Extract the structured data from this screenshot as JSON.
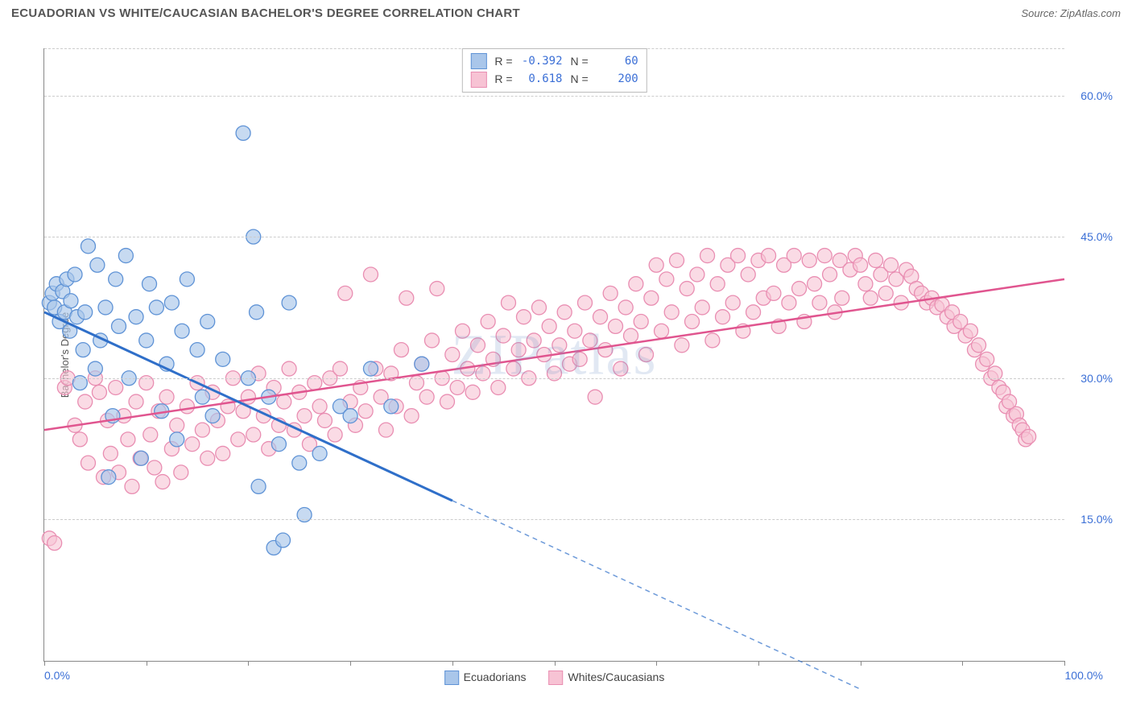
{
  "header": {
    "title": "ECUADORIAN VS WHITE/CAUCASIAN BACHELOR'S DEGREE CORRELATION CHART",
    "source_prefix": "Source: ",
    "source_name": "ZipAtlas.com"
  },
  "watermark": "ZIPatlas",
  "axes": {
    "y_title": "Bachelor's Degree",
    "x_min_label": "0.0%",
    "x_max_label": "100.0%",
    "xlim": [
      0,
      100
    ],
    "ylim": [
      0,
      65
    ],
    "x_ticks": [
      0,
      10,
      20,
      30,
      40,
      50,
      60,
      70,
      80,
      90,
      100
    ],
    "y_gridlines": [
      15,
      30,
      45,
      60,
      65
    ],
    "y_labels": [
      {
        "v": 15,
        "text": "15.0%"
      },
      {
        "v": 30,
        "text": "30.0%"
      },
      {
        "v": 45,
        "text": "45.0%"
      },
      {
        "v": 60,
        "text": "60.0%"
      }
    ]
  },
  "series": {
    "blue": {
      "name": "Ecuadorians",
      "fill": "#a9c6ea",
      "stroke": "#5f93d6",
      "line_color": "#2f6fc9",
      "marker_radius": 9,
      "marker_opacity": 0.65,
      "R": "-0.392",
      "N": "60",
      "trend": {
        "x1": 0,
        "y1": 37,
        "x_solid_end": 40,
        "y_solid_end": 17,
        "x2": 80,
        "y2": -3
      },
      "points": [
        [
          0.5,
          38
        ],
        [
          0.8,
          39
        ],
        [
          1,
          37.5
        ],
        [
          1.2,
          40
        ],
        [
          1.5,
          36
        ],
        [
          1.8,
          39.2
        ],
        [
          2,
          37
        ],
        [
          2.2,
          40.5
        ],
        [
          2.5,
          35
        ],
        [
          2.6,
          38.2
        ],
        [
          3,
          41
        ],
        [
          3.2,
          36.5
        ],
        [
          3.5,
          29.5
        ],
        [
          3.8,
          33
        ],
        [
          4,
          37
        ],
        [
          4.3,
          44
        ],
        [
          5,
          31
        ],
        [
          5.2,
          42
        ],
        [
          5.5,
          34
        ],
        [
          6,
          37.5
        ],
        [
          6.3,
          19.5
        ],
        [
          6.7,
          26
        ],
        [
          7,
          40.5
        ],
        [
          7.3,
          35.5
        ],
        [
          8,
          43
        ],
        [
          8.3,
          30
        ],
        [
          9,
          36.5
        ],
        [
          9.5,
          21.5
        ],
        [
          10,
          34
        ],
        [
          10.3,
          40
        ],
        [
          11,
          37.5
        ],
        [
          11.5,
          26.5
        ],
        [
          12,
          31.5
        ],
        [
          12.5,
          38
        ],
        [
          13,
          23.5
        ],
        [
          13.5,
          35
        ],
        [
          14,
          40.5
        ],
        [
          15,
          33
        ],
        [
          15.5,
          28
        ],
        [
          16,
          36
        ],
        [
          16.5,
          26
        ],
        [
          17.5,
          32
        ],
        [
          19.5,
          56
        ],
        [
          20,
          30
        ],
        [
          20.5,
          45
        ],
        [
          20.8,
          37
        ],
        [
          21,
          18.5
        ],
        [
          22,
          28
        ],
        [
          22.5,
          12
        ],
        [
          23,
          23
        ],
        [
          23.4,
          12.8
        ],
        [
          24,
          38
        ],
        [
          25,
          21
        ],
        [
          25.5,
          15.5
        ],
        [
          27,
          22
        ],
        [
          29,
          27
        ],
        [
          30,
          26
        ],
        [
          32,
          31
        ],
        [
          34,
          27
        ],
        [
          37,
          31.5
        ]
      ]
    },
    "pink": {
      "name": "Whites/Caucasians",
      "fill": "#f7c3d4",
      "stroke": "#e98eb2",
      "line_color": "#e0558f",
      "marker_radius": 9,
      "marker_opacity": 0.6,
      "R": "0.618",
      "N": "200",
      "trend": {
        "x1": 0,
        "y1": 24.5,
        "x2": 100,
        "y2": 40.5
      },
      "points": [
        [
          0.5,
          13
        ],
        [
          1.0,
          12.5
        ],
        [
          2,
          29
        ],
        [
          2.3,
          30
        ],
        [
          3,
          25
        ],
        [
          3.5,
          23.5
        ],
        [
          4,
          27.5
        ],
        [
          4.3,
          21
        ],
        [
          5,
          30
        ],
        [
          5.4,
          28.5
        ],
        [
          5.8,
          19.5
        ],
        [
          6.2,
          25.5
        ],
        [
          6.5,
          22
        ],
        [
          7,
          29
        ],
        [
          7.3,
          20
        ],
        [
          7.8,
          26
        ],
        [
          8.2,
          23.5
        ],
        [
          8.6,
          18.5
        ],
        [
          9,
          27.5
        ],
        [
          9.4,
          21.5
        ],
        [
          10,
          29.5
        ],
        [
          10.4,
          24
        ],
        [
          10.8,
          20.5
        ],
        [
          11.2,
          26.5
        ],
        [
          11.6,
          19
        ],
        [
          12,
          28
        ],
        [
          12.5,
          22.5
        ],
        [
          13,
          25
        ],
        [
          13.4,
          20
        ],
        [
          14,
          27
        ],
        [
          14.5,
          23
        ],
        [
          15,
          29.5
        ],
        [
          15.5,
          24.5
        ],
        [
          16,
          21.5
        ],
        [
          16.5,
          28.5
        ],
        [
          17,
          25.5
        ],
        [
          17.5,
          22
        ],
        [
          18,
          27
        ],
        [
          18.5,
          30
        ],
        [
          19,
          23.5
        ],
        [
          19.5,
          26.5
        ],
        [
          20,
          28
        ],
        [
          20.5,
          24
        ],
        [
          21,
          30.5
        ],
        [
          21.5,
          26
        ],
        [
          22,
          22.5
        ],
        [
          22.5,
          29
        ],
        [
          23,
          25
        ],
        [
          23.5,
          27.5
        ],
        [
          24,
          31
        ],
        [
          24.5,
          24.5
        ],
        [
          25,
          28.5
        ],
        [
          25.5,
          26
        ],
        [
          26,
          23
        ],
        [
          26.5,
          29.5
        ],
        [
          27,
          27
        ],
        [
          27.5,
          25.5
        ],
        [
          28,
          30
        ],
        [
          28.5,
          24
        ],
        [
          29,
          31
        ],
        [
          29.5,
          39
        ],
        [
          30,
          27.5
        ],
        [
          30.5,
          25
        ],
        [
          31,
          29
        ],
        [
          31.5,
          26.5
        ],
        [
          32,
          41
        ],
        [
          32.5,
          31
        ],
        [
          33,
          28
        ],
        [
          33.5,
          24.5
        ],
        [
          34,
          30.5
        ],
        [
          34.5,
          27
        ],
        [
          35,
          33
        ],
        [
          35.5,
          38.5
        ],
        [
          36,
          26
        ],
        [
          36.5,
          29.5
        ],
        [
          37,
          31.5
        ],
        [
          37.5,
          28
        ],
        [
          38,
          34
        ],
        [
          38.5,
          39.5
        ],
        [
          39,
          30
        ],
        [
          39.5,
          27.5
        ],
        [
          40,
          32.5
        ],
        [
          40.5,
          29
        ],
        [
          41,
          35
        ],
        [
          41.5,
          31
        ],
        [
          42,
          28.5
        ],
        [
          42.5,
          33.5
        ],
        [
          43,
          30.5
        ],
        [
          43.5,
          36
        ],
        [
          44,
          32
        ],
        [
          44.5,
          29
        ],
        [
          45,
          34.5
        ],
        [
          45.5,
          38
        ],
        [
          46,
          31
        ],
        [
          46.5,
          33
        ],
        [
          47,
          36.5
        ],
        [
          47.5,
          30
        ],
        [
          48,
          34
        ],
        [
          48.5,
          37.5
        ],
        [
          49,
          32.5
        ],
        [
          49.5,
          35.5
        ],
        [
          50,
          30.5
        ],
        [
          50.5,
          33.5
        ],
        [
          51,
          37
        ],
        [
          51.5,
          31.5
        ],
        [
          52,
          35
        ],
        [
          52.5,
          32
        ],
        [
          53,
          38
        ],
        [
          53.5,
          34
        ],
        [
          54,
          28
        ],
        [
          54.5,
          36.5
        ],
        [
          55,
          33
        ],
        [
          55.5,
          39
        ],
        [
          56,
          35.5
        ],
        [
          56.5,
          31
        ],
        [
          57,
          37.5
        ],
        [
          57.5,
          34.5
        ],
        [
          58,
          40
        ],
        [
          58.5,
          36
        ],
        [
          59,
          32.5
        ],
        [
          59.5,
          38.5
        ],
        [
          60,
          42
        ],
        [
          60.5,
          35
        ],
        [
          61,
          40.5
        ],
        [
          61.5,
          37
        ],
        [
          62,
          42.5
        ],
        [
          62.5,
          33.5
        ],
        [
          63,
          39.5
        ],
        [
          63.5,
          36
        ],
        [
          64,
          41
        ],
        [
          64.5,
          37.5
        ],
        [
          65,
          43
        ],
        [
          65.5,
          34
        ],
        [
          66,
          40
        ],
        [
          66.5,
          36.5
        ],
        [
          67,
          42
        ],
        [
          67.5,
          38
        ],
        [
          68,
          43
        ],
        [
          68.5,
          35
        ],
        [
          69,
          41
        ],
        [
          69.5,
          37
        ],
        [
          70,
          42.5
        ],
        [
          70.5,
          38.5
        ],
        [
          71,
          43
        ],
        [
          71.5,
          39
        ],
        [
          72,
          35.5
        ],
        [
          72.5,
          42
        ],
        [
          73,
          38
        ],
        [
          73.5,
          43
        ],
        [
          74,
          39.5
        ],
        [
          74.5,
          36
        ],
        [
          75,
          42.5
        ],
        [
          75.5,
          40
        ],
        [
          76,
          38
        ],
        [
          76.5,
          43
        ],
        [
          77,
          41
        ],
        [
          77.5,
          37
        ],
        [
          78,
          42.5
        ],
        [
          78.2,
          38.5
        ],
        [
          79,
          41.5
        ],
        [
          79.5,
          43
        ],
        [
          80,
          42
        ],
        [
          80.5,
          40
        ],
        [
          81,
          38.5
        ],
        [
          81.5,
          42.5
        ],
        [
          82,
          41
        ],
        [
          82.5,
          39
        ],
        [
          83,
          42
        ],
        [
          83.5,
          40.5
        ],
        [
          84,
          38
        ],
        [
          84.5,
          41.5
        ],
        [
          85,
          40.8
        ],
        [
          85.5,
          39.5
        ],
        [
          86,
          39
        ],
        [
          86.5,
          38
        ],
        [
          87,
          38.5
        ],
        [
          87.5,
          37.5
        ],
        [
          88,
          37.8
        ],
        [
          88.5,
          36.5
        ],
        [
          89,
          37
        ],
        [
          89.2,
          35.5
        ],
        [
          89.8,
          36
        ],
        [
          90.3,
          34.5
        ],
        [
          90.8,
          35
        ],
        [
          91.2,
          33
        ],
        [
          91.6,
          33.5
        ],
        [
          92,
          31.5
        ],
        [
          92.4,
          32
        ],
        [
          92.8,
          30
        ],
        [
          93.2,
          30.5
        ],
        [
          93.6,
          29
        ],
        [
          94,
          28.5
        ],
        [
          94.3,
          27
        ],
        [
          94.6,
          27.5
        ],
        [
          95,
          26
        ],
        [
          95.3,
          26.2
        ],
        [
          95.6,
          25
        ],
        [
          95.9,
          24.5
        ],
        [
          96.2,
          23.5
        ],
        [
          96.5,
          23.8
        ]
      ]
    }
  },
  "legend_top": {
    "R_label": "R =",
    "N_label": "N ="
  },
  "colors": {
    "grid": "#cccccc",
    "axis": "#888888",
    "text_axis": "#3b6fd6"
  }
}
